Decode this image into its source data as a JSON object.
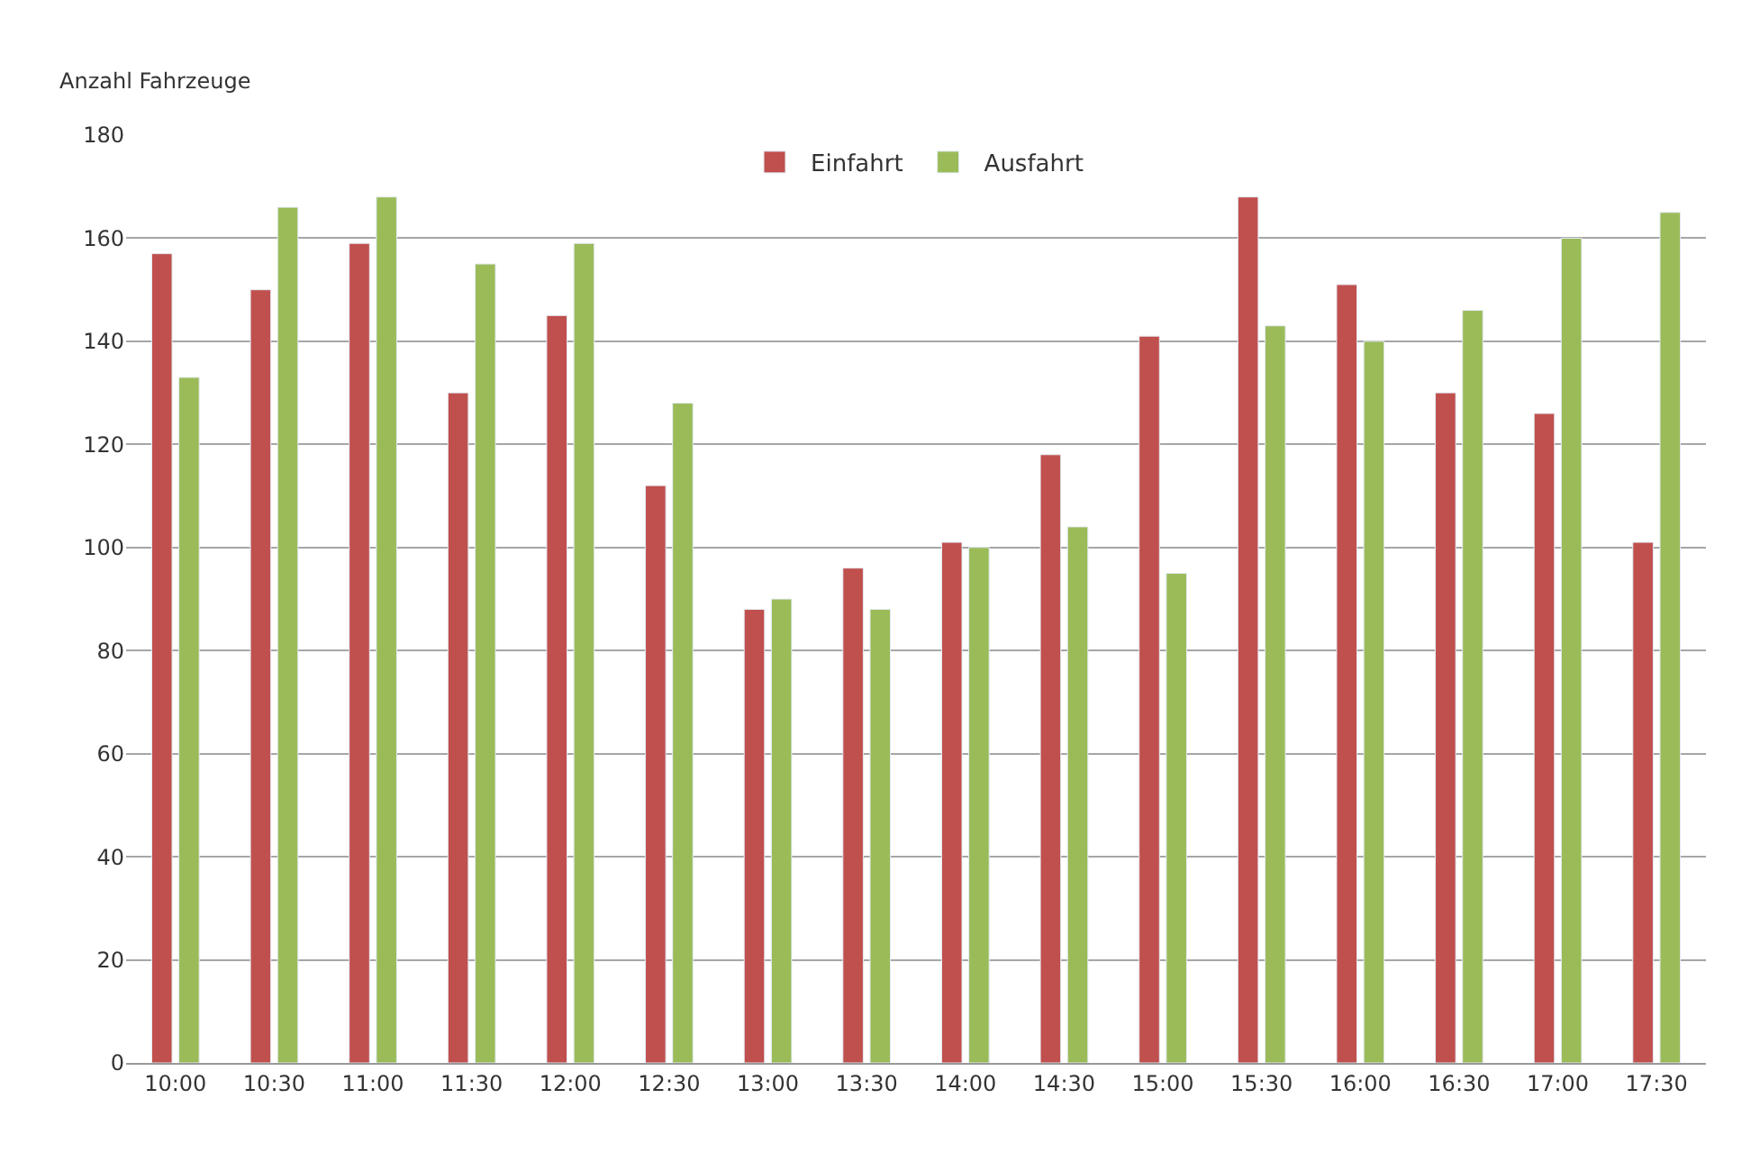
{
  "chart_data": {
    "type": "bar",
    "ylabel": "Anzahl Fahrzeuge",
    "categories": [
      "10:00",
      "10:30",
      "11:00",
      "11:30",
      "12:00",
      "12:30",
      "13:00",
      "13:30",
      "14:00",
      "14:30",
      "15:00",
      "15:30",
      "16:00",
      "16:30",
      "17:00",
      "17:30"
    ],
    "series": [
      {
        "name": "Einfahrt",
        "color": "#c0504d",
        "values": [
          157,
          150,
          159,
          130,
          145,
          112,
          88,
          96,
          101,
          118,
          141,
          168,
          151,
          130,
          126,
          101
        ]
      },
      {
        "name": "Ausfahrt",
        "color": "#9bbb59",
        "values": [
          133,
          166,
          168,
          155,
          159,
          128,
          90,
          88,
          100,
          104,
          95,
          143,
          140,
          146,
          160,
          165
        ]
      }
    ],
    "ylim": [
      0,
      180
    ],
    "yticks": [
      0,
      20,
      40,
      60,
      80,
      100,
      120,
      140,
      160,
      180
    ],
    "grid": "y",
    "legend": "top"
  }
}
